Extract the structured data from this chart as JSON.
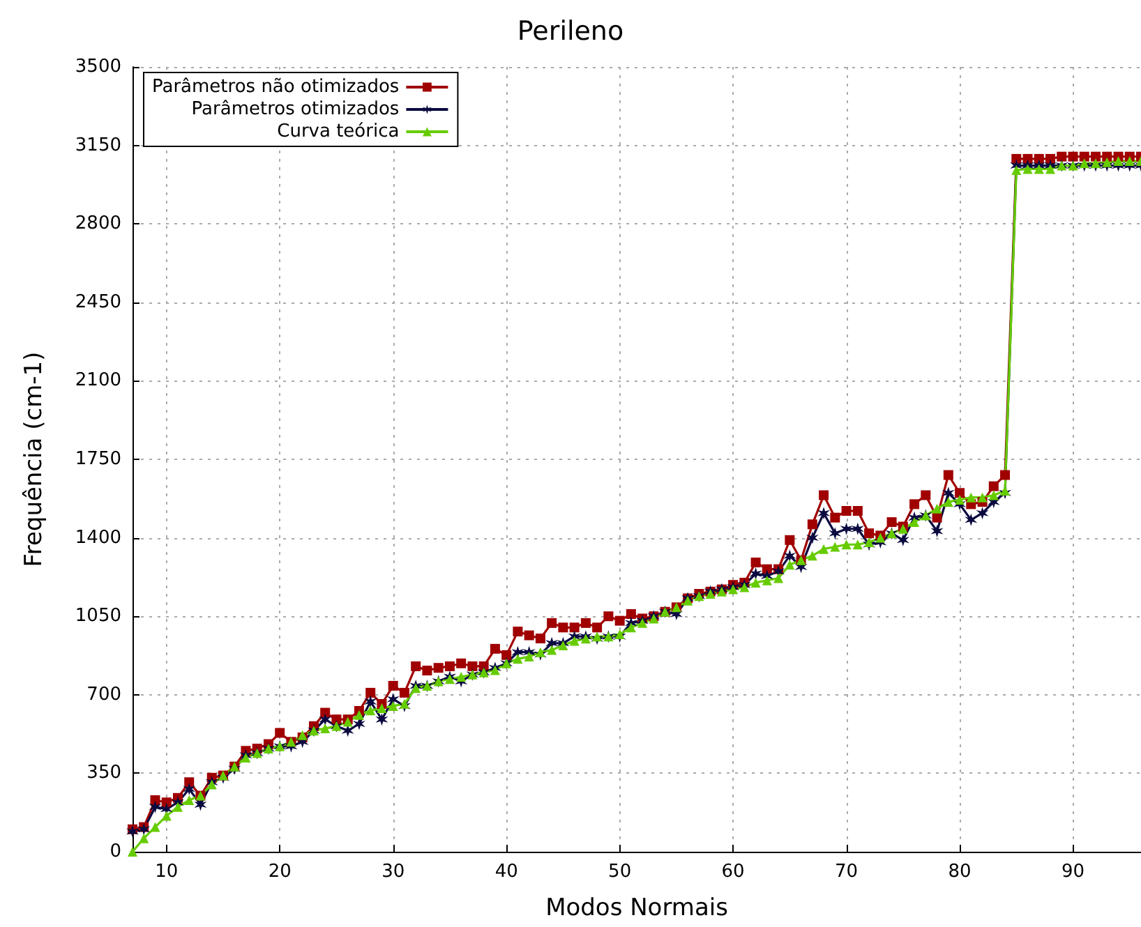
{
  "chart_data": {
    "type": "line",
    "title": "Perileno",
    "xlabel": "Modos Normais",
    "ylabel": "Frequência (cm-1)",
    "x": [
      7,
      8,
      9,
      10,
      11,
      12,
      13,
      14,
      15,
      16,
      17,
      18,
      19,
      20,
      21,
      22,
      23,
      24,
      25,
      26,
      27,
      28,
      29,
      30,
      31,
      32,
      33,
      34,
      35,
      36,
      37,
      38,
      39,
      40,
      41,
      42,
      43,
      44,
      45,
      46,
      47,
      48,
      49,
      50,
      51,
      52,
      53,
      54,
      55,
      56,
      57,
      58,
      59,
      60,
      61,
      62,
      63,
      64,
      65,
      66,
      67,
      68,
      69,
      70,
      71,
      72,
      73,
      74,
      75,
      76,
      77,
      78,
      79,
      80,
      81,
      82,
      83,
      84,
      85,
      86,
      87,
      88,
      89,
      90,
      91,
      92,
      93,
      94,
      95,
      96
    ],
    "series": [
      {
        "name": "Parâmetros não otimizados",
        "color": "#a00000",
        "marker": "square",
        "values": [
          100,
          110,
          230,
          220,
          240,
          310,
          250,
          330,
          340,
          380,
          450,
          460,
          480,
          530,
          490,
          510,
          560,
          620,
          590,
          590,
          628,
          709,
          659,
          740,
          709,
          827,
          808,
          820,
          827,
          840,
          827,
          827,
          905,
          877,
          982,
          965,
          951,
          1020,
          1000,
          1000,
          1020,
          1000,
          1050,
          1030,
          1060,
          1040,
          1050,
          1070,
          1090,
          1130,
          1150,
          1160,
          1170,
          1190,
          1200,
          1290,
          1260,
          1260,
          1390,
          1300,
          1460,
          1590,
          1490,
          1520,
          1520,
          1420,
          1410,
          1470,
          1450,
          1550,
          1590,
          1490,
          1680,
          1600,
          1550,
          1560,
          1630,
          1680,
          3090,
          3090,
          3090,
          3090,
          3100,
          3100,
          3100,
          3100,
          3100,
          3100,
          3100,
          3100
        ]
      },
      {
        "name": "Parâmetros otimizados",
        "color": "#0a0a40",
        "marker": "cross",
        "values": [
          90,
          100,
          200,
          190,
          220,
          280,
          210,
          310,
          330,
          370,
          430,
          440,
          460,
          470,
          470,
          490,
          540,
          590,
          560,
          540,
          570,
          670,
          590,
          680,
          650,
          740,
          740,
          760,
          780,
          760,
          790,
          800,
          820,
          840,
          890,
          890,
          880,
          930,
          930,
          960,
          960,
          950,
          960,
          960,
          1020,
          1030,
          1050,
          1070,
          1060,
          1130,
          1140,
          1160,
          1170,
          1180,
          1190,
          1240,
          1230,
          1250,
          1320,
          1270,
          1400,
          1510,
          1420,
          1440,
          1440,
          1370,
          1380,
          1420,
          1390,
          1490,
          1500,
          1430,
          1600,
          1550,
          1480,
          1510,
          1560,
          1600,
          3060,
          3060,
          3060,
          3060,
          3060,
          3060,
          3060,
          3060,
          3060,
          3060,
          3060,
          3060
        ]
      },
      {
        "name": "Curva teórica",
        "color": "#66cc00",
        "marker": "triangle",
        "values": [
          0,
          60,
          110,
          160,
          200,
          230,
          250,
          300,
          340,
          380,
          420,
          440,
          460,
          470,
          490,
          520,
          540,
          550,
          560,
          580,
          610,
          630,
          640,
          650,
          660,
          730,
          740,
          760,
          770,
          780,
          790,
          800,
          810,
          840,
          860,
          870,
          890,
          900,
          920,
          940,
          950,
          960,
          960,
          970,
          1000,
          1020,
          1040,
          1070,
          1090,
          1120,
          1140,
          1150,
          1160,
          1170,
          1180,
          1200,
          1210,
          1220,
          1280,
          1300,
          1320,
          1350,
          1360,
          1370,
          1370,
          1380,
          1400,
          1420,
          1440,
          1470,
          1500,
          1530,
          1560,
          1570,
          1580,
          1580,
          1590,
          1610,
          3040,
          3045,
          3045,
          3045,
          3060,
          3060,
          3070,
          3070,
          3075,
          3080,
          3080,
          3080
        ]
      }
    ],
    "xlim": [
      7,
      96
    ],
    "xticks": [
      10,
      20,
      30,
      40,
      50,
      60,
      70,
      80,
      90
    ],
    "ylim": [
      0,
      3500
    ],
    "yticks": [
      0,
      350,
      700,
      1050,
      1400,
      1750,
      2100,
      2450,
      2800,
      3150,
      3500
    ],
    "grid": true,
    "legend": "top left",
    "line_style": "solid"
  }
}
